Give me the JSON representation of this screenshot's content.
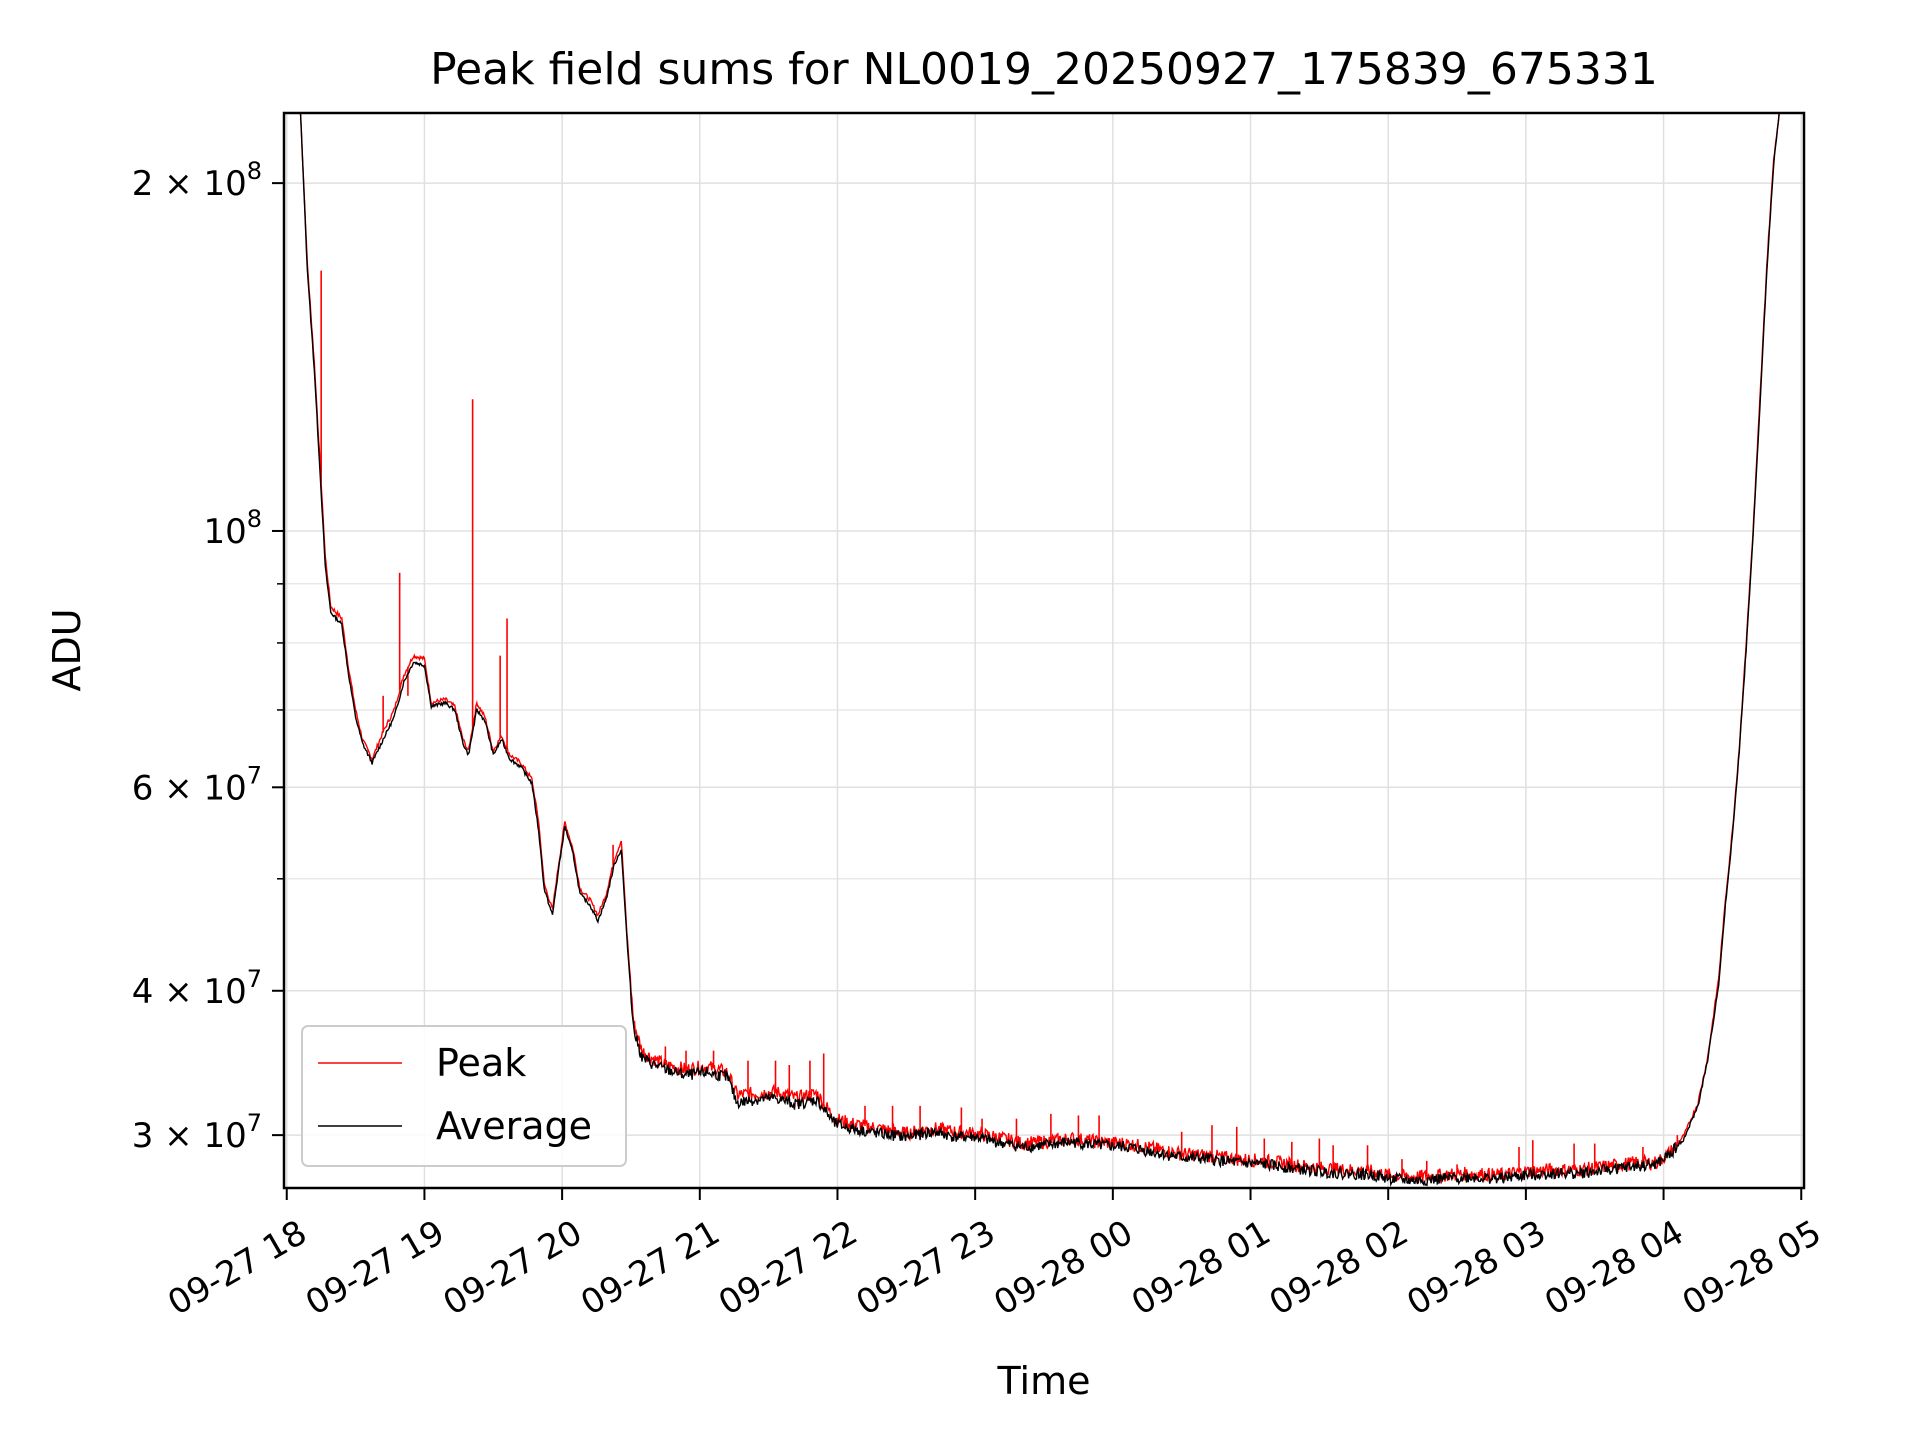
{
  "chart_data": {
    "type": "line",
    "title": "Peak field sums for NL0019_20250927_175839_675331",
    "xlabel": "Time",
    "ylabel": "ADU",
    "yscale": "log",
    "ylim": [
      27000000,
      230000000
    ],
    "xlim_hours": [
      17.98,
      29.02
    ],
    "grid": true,
    "legend_position": "lower-left",
    "colors": {
      "peak": "#ff0000",
      "average": "#000000",
      "grid": "#e0e0e0",
      "axes": "#000000"
    },
    "x_ticks": [
      {
        "hour": 18,
        "label": "09-27 18"
      },
      {
        "hour": 19,
        "label": "09-27 19"
      },
      {
        "hour": 20,
        "label": "09-27 20"
      },
      {
        "hour": 21,
        "label": "09-27 21"
      },
      {
        "hour": 22,
        "label": "09-27 22"
      },
      {
        "hour": 23,
        "label": "09-27 23"
      },
      {
        "hour": 24,
        "label": "09-28 00"
      },
      {
        "hour": 25,
        "label": "09-28 01"
      },
      {
        "hour": 26,
        "label": "09-28 02"
      },
      {
        "hour": 27,
        "label": "09-28 03"
      },
      {
        "hour": 28,
        "label": "09-28 04"
      },
      {
        "hour": 29,
        "label": "09-28 05"
      }
    ],
    "y_ticks_major": [
      {
        "value": 30000000,
        "mantissa": "3",
        "exp": "7"
      },
      {
        "value": 40000000,
        "mantissa": "4",
        "exp": "7"
      },
      {
        "value": 60000000,
        "mantissa": "6",
        "exp": "7"
      },
      {
        "value": 100000000,
        "mantissa": "",
        "exp": "8"
      },
      {
        "value": 200000000,
        "mantissa": "2",
        "exp": "8"
      }
    ],
    "y_ticks_minor": [
      50000000,
      70000000,
      80000000,
      90000000
    ],
    "series": [
      {
        "name": "Peak",
        "key": "peak",
        "points": [
          [
            18.1,
            230000000
          ],
          [
            18.15,
            170000000
          ],
          [
            18.2,
            140000000
          ],
          [
            18.25,
            110000000
          ],
          [
            18.28,
            95000000
          ],
          [
            18.32,
            86000000
          ],
          [
            18.4,
            84000000
          ],
          [
            18.45,
            76000000
          ],
          [
            18.5,
            70000000
          ],
          [
            18.55,
            66000000
          ],
          [
            18.62,
            63500000
          ],
          [
            18.7,
            67000000
          ],
          [
            18.78,
            70000000
          ],
          [
            18.85,
            75000000
          ],
          [
            18.92,
            78000000
          ],
          [
            19.0,
            77500000
          ],
          [
            19.05,
            71000000
          ],
          [
            19.15,
            71500000
          ],
          [
            19.22,
            70500000
          ],
          [
            19.28,
            66000000
          ],
          [
            19.32,
            64500000
          ],
          [
            19.38,
            71000000
          ],
          [
            19.44,
            69000000
          ],
          [
            19.5,
            64500000
          ],
          [
            19.56,
            66500000
          ],
          [
            19.62,
            64000000
          ],
          [
            19.7,
            63000000
          ],
          [
            19.78,
            61000000
          ],
          [
            19.83,
            56000000
          ],
          [
            19.87,
            49500000
          ],
          [
            19.93,
            47000000
          ],
          [
            19.97,
            51000000
          ],
          [
            20.02,
            56000000
          ],
          [
            20.08,
            53000000
          ],
          [
            20.13,
            49000000
          ],
          [
            20.2,
            48000000
          ],
          [
            20.26,
            46500000
          ],
          [
            20.32,
            48500000
          ],
          [
            20.38,
            52000000
          ],
          [
            20.43,
            54000000
          ],
          [
            20.47,
            45000000
          ],
          [
            20.52,
            37500000
          ],
          [
            20.58,
            35500000
          ],
          [
            20.65,
            35000000
          ],
          [
            20.75,
            34500000
          ],
          [
            20.9,
            34200000
          ],
          [
            21.05,
            34400000
          ],
          [
            21.2,
            34000000
          ],
          [
            21.27,
            32500000
          ],
          [
            21.4,
            32600000
          ],
          [
            21.55,
            32700000
          ],
          [
            21.7,
            32300000
          ],
          [
            21.85,
            32600000
          ],
          [
            21.98,
            31000000
          ],
          [
            22.1,
            30700000
          ],
          [
            22.3,
            30400000
          ],
          [
            22.5,
            30100000
          ],
          [
            22.7,
            30400000
          ],
          [
            22.85,
            30200000
          ],
          [
            23.0,
            30100000
          ],
          [
            23.15,
            29900000
          ],
          [
            23.35,
            29500000
          ],
          [
            23.5,
            29600000
          ],
          [
            23.7,
            29800000
          ],
          [
            23.9,
            29600000
          ],
          [
            24.1,
            29500000
          ],
          [
            24.3,
            29200000
          ],
          [
            24.5,
            28900000
          ],
          [
            24.7,
            28800000
          ],
          [
            24.9,
            28600000
          ],
          [
            25.1,
            28500000
          ],
          [
            25.3,
            28300000
          ],
          [
            25.5,
            28100000
          ],
          [
            25.7,
            28000000
          ],
          [
            25.9,
            27900000
          ],
          [
            26.0,
            27700000
          ],
          [
            26.2,
            27600000
          ],
          [
            26.4,
            27700000
          ],
          [
            26.6,
            27800000
          ],
          [
            26.8,
            27700000
          ],
          [
            27.0,
            27900000
          ],
          [
            27.2,
            28000000
          ],
          [
            27.4,
            28000000
          ],
          [
            27.6,
            28200000
          ],
          [
            27.8,
            28400000
          ],
          [
            27.95,
            28400000
          ],
          [
            28.05,
            29000000
          ],
          [
            28.15,
            30000000
          ],
          [
            28.25,
            32000000
          ],
          [
            28.32,
            35000000
          ],
          [
            28.4,
            41000000
          ],
          [
            28.45,
            48000000
          ],
          [
            28.5,
            55000000
          ],
          [
            28.55,
            65000000
          ],
          [
            28.6,
            80000000
          ],
          [
            28.65,
            100000000
          ],
          [
            28.7,
            130000000
          ],
          [
            28.75,
            170000000
          ],
          [
            28.8,
            210000000
          ],
          [
            28.84,
            230000000
          ]
        ],
        "spikes": [
          [
            18.25,
            168000000
          ],
          [
            18.7,
            72000000
          ],
          [
            18.82,
            92000000
          ],
          [
            18.88,
            72000000
          ],
          [
            19.35,
            130000000
          ],
          [
            19.55,
            78000000
          ],
          [
            19.6,
            84000000
          ],
          [
            20.37,
            53500000
          ],
          [
            20.75,
            35800000
          ],
          [
            20.9,
            35500000
          ],
          [
            21.1,
            35500000
          ],
          [
            21.35,
            34800000
          ],
          [
            21.55,
            34800000
          ],
          [
            21.65,
            34500000
          ],
          [
            21.8,
            34800000
          ],
          [
            21.9,
            35300000
          ],
          [
            22.2,
            31800000
          ],
          [
            22.4,
            31800000
          ],
          [
            22.6,
            31800000
          ],
          [
            22.9,
            31700000
          ],
          [
            23.05,
            31000000
          ],
          [
            23.3,
            31000000
          ],
          [
            23.55,
            31300000
          ],
          [
            23.75,
            31200000
          ],
          [
            23.9,
            31200000
          ],
          [
            24.5,
            30200000
          ],
          [
            24.72,
            30600000
          ],
          [
            24.9,
            30500000
          ],
          [
            25.1,
            29800000
          ],
          [
            25.3,
            29600000
          ],
          [
            25.5,
            29800000
          ],
          [
            25.6,
            29400000
          ],
          [
            25.85,
            29400000
          ],
          [
            26.1,
            28600000
          ],
          [
            26.28,
            28500000
          ],
          [
            26.5,
            28300000
          ],
          [
            26.95,
            29300000
          ],
          [
            27.05,
            29700000
          ],
          [
            27.35,
            29500000
          ],
          [
            27.5,
            29500000
          ],
          [
            27.85,
            29300000
          ],
          [
            28.1,
            30000000
          ]
        ]
      },
      {
        "name": "Average",
        "key": "average",
        "points": [
          [
            18.1,
            230000000
          ],
          [
            18.15,
            168000000
          ],
          [
            18.2,
            138000000
          ],
          [
            18.25,
            108000000
          ],
          [
            18.28,
            93000000
          ],
          [
            18.32,
            85000000
          ],
          [
            18.4,
            83000000
          ],
          [
            18.45,
            75000000
          ],
          [
            18.5,
            69000000
          ],
          [
            18.55,
            65500000
          ],
          [
            18.62,
            63000000
          ],
          [
            18.7,
            66000000
          ],
          [
            18.78,
            69000000
          ],
          [
            18.85,
            74000000
          ],
          [
            18.92,
            77000000
          ],
          [
            19.0,
            76500000
          ],
          [
            19.05,
            70500000
          ],
          [
            19.15,
            71000000
          ],
          [
            19.22,
            70000000
          ],
          [
            19.28,
            65500000
          ],
          [
            19.32,
            64000000
          ],
          [
            19.38,
            70000000
          ],
          [
            19.44,
            68500000
          ],
          [
            19.5,
            64000000
          ],
          [
            19.56,
            66000000
          ],
          [
            19.62,
            63500000
          ],
          [
            19.7,
            62500000
          ],
          [
            19.78,
            60500000
          ],
          [
            19.83,
            55000000
          ],
          [
            19.87,
            49000000
          ],
          [
            19.93,
            46500000
          ],
          [
            19.97,
            50500000
          ],
          [
            20.02,
            55500000
          ],
          [
            20.08,
            52500000
          ],
          [
            20.13,
            48500000
          ],
          [
            20.2,
            47500000
          ],
          [
            20.26,
            46000000
          ],
          [
            20.32,
            48000000
          ],
          [
            20.38,
            51500000
          ],
          [
            20.43,
            53000000
          ],
          [
            20.47,
            44500000
          ],
          [
            20.52,
            37000000
          ],
          [
            20.58,
            35000000
          ],
          [
            20.65,
            34600000
          ],
          [
            20.75,
            34200000
          ],
          [
            20.9,
            33800000
          ],
          [
            21.05,
            34000000
          ],
          [
            21.2,
            33700000
          ],
          [
            21.27,
            32000000
          ],
          [
            21.4,
            32200000
          ],
          [
            21.55,
            32300000
          ],
          [
            21.7,
            31900000
          ],
          [
            21.85,
            32200000
          ],
          [
            21.98,
            30700000
          ],
          [
            22.1,
            30400000
          ],
          [
            22.3,
            30100000
          ],
          [
            22.5,
            29900000
          ],
          [
            22.7,
            30200000
          ],
          [
            22.85,
            29900000
          ],
          [
            23.0,
            29900000
          ],
          [
            23.15,
            29600000
          ],
          [
            23.35,
            29300000
          ],
          [
            23.5,
            29400000
          ],
          [
            23.7,
            29600000
          ],
          [
            23.9,
            29400000
          ],
          [
            24.1,
            29300000
          ],
          [
            24.3,
            29000000
          ],
          [
            24.5,
            28700000
          ],
          [
            24.7,
            28600000
          ],
          [
            24.9,
            28400000
          ],
          [
            25.1,
            28300000
          ],
          [
            25.3,
            28100000
          ],
          [
            25.5,
            27900000
          ],
          [
            25.7,
            27800000
          ],
          [
            25.9,
            27700000
          ],
          [
            26.0,
            27500000
          ],
          [
            26.2,
            27400000
          ],
          [
            26.4,
            27500000
          ],
          [
            26.6,
            27600000
          ],
          [
            26.8,
            27500000
          ],
          [
            27.0,
            27700000
          ],
          [
            27.2,
            27800000
          ],
          [
            27.4,
            27800000
          ],
          [
            27.6,
            28000000
          ],
          [
            27.8,
            28200000
          ],
          [
            27.95,
            28300000
          ],
          [
            28.05,
            28900000
          ],
          [
            28.15,
            29800000
          ],
          [
            28.25,
            31800000
          ],
          [
            28.32,
            34800000
          ],
          [
            28.4,
            40500000
          ],
          [
            28.45,
            47500000
          ],
          [
            28.5,
            54500000
          ],
          [
            28.55,
            64500000
          ],
          [
            28.6,
            79000000
          ],
          [
            28.65,
            99000000
          ],
          [
            28.7,
            128000000
          ],
          [
            28.75,
            168000000
          ],
          [
            28.8,
            208000000
          ],
          [
            28.84,
            230000000
          ]
        ]
      }
    ]
  }
}
